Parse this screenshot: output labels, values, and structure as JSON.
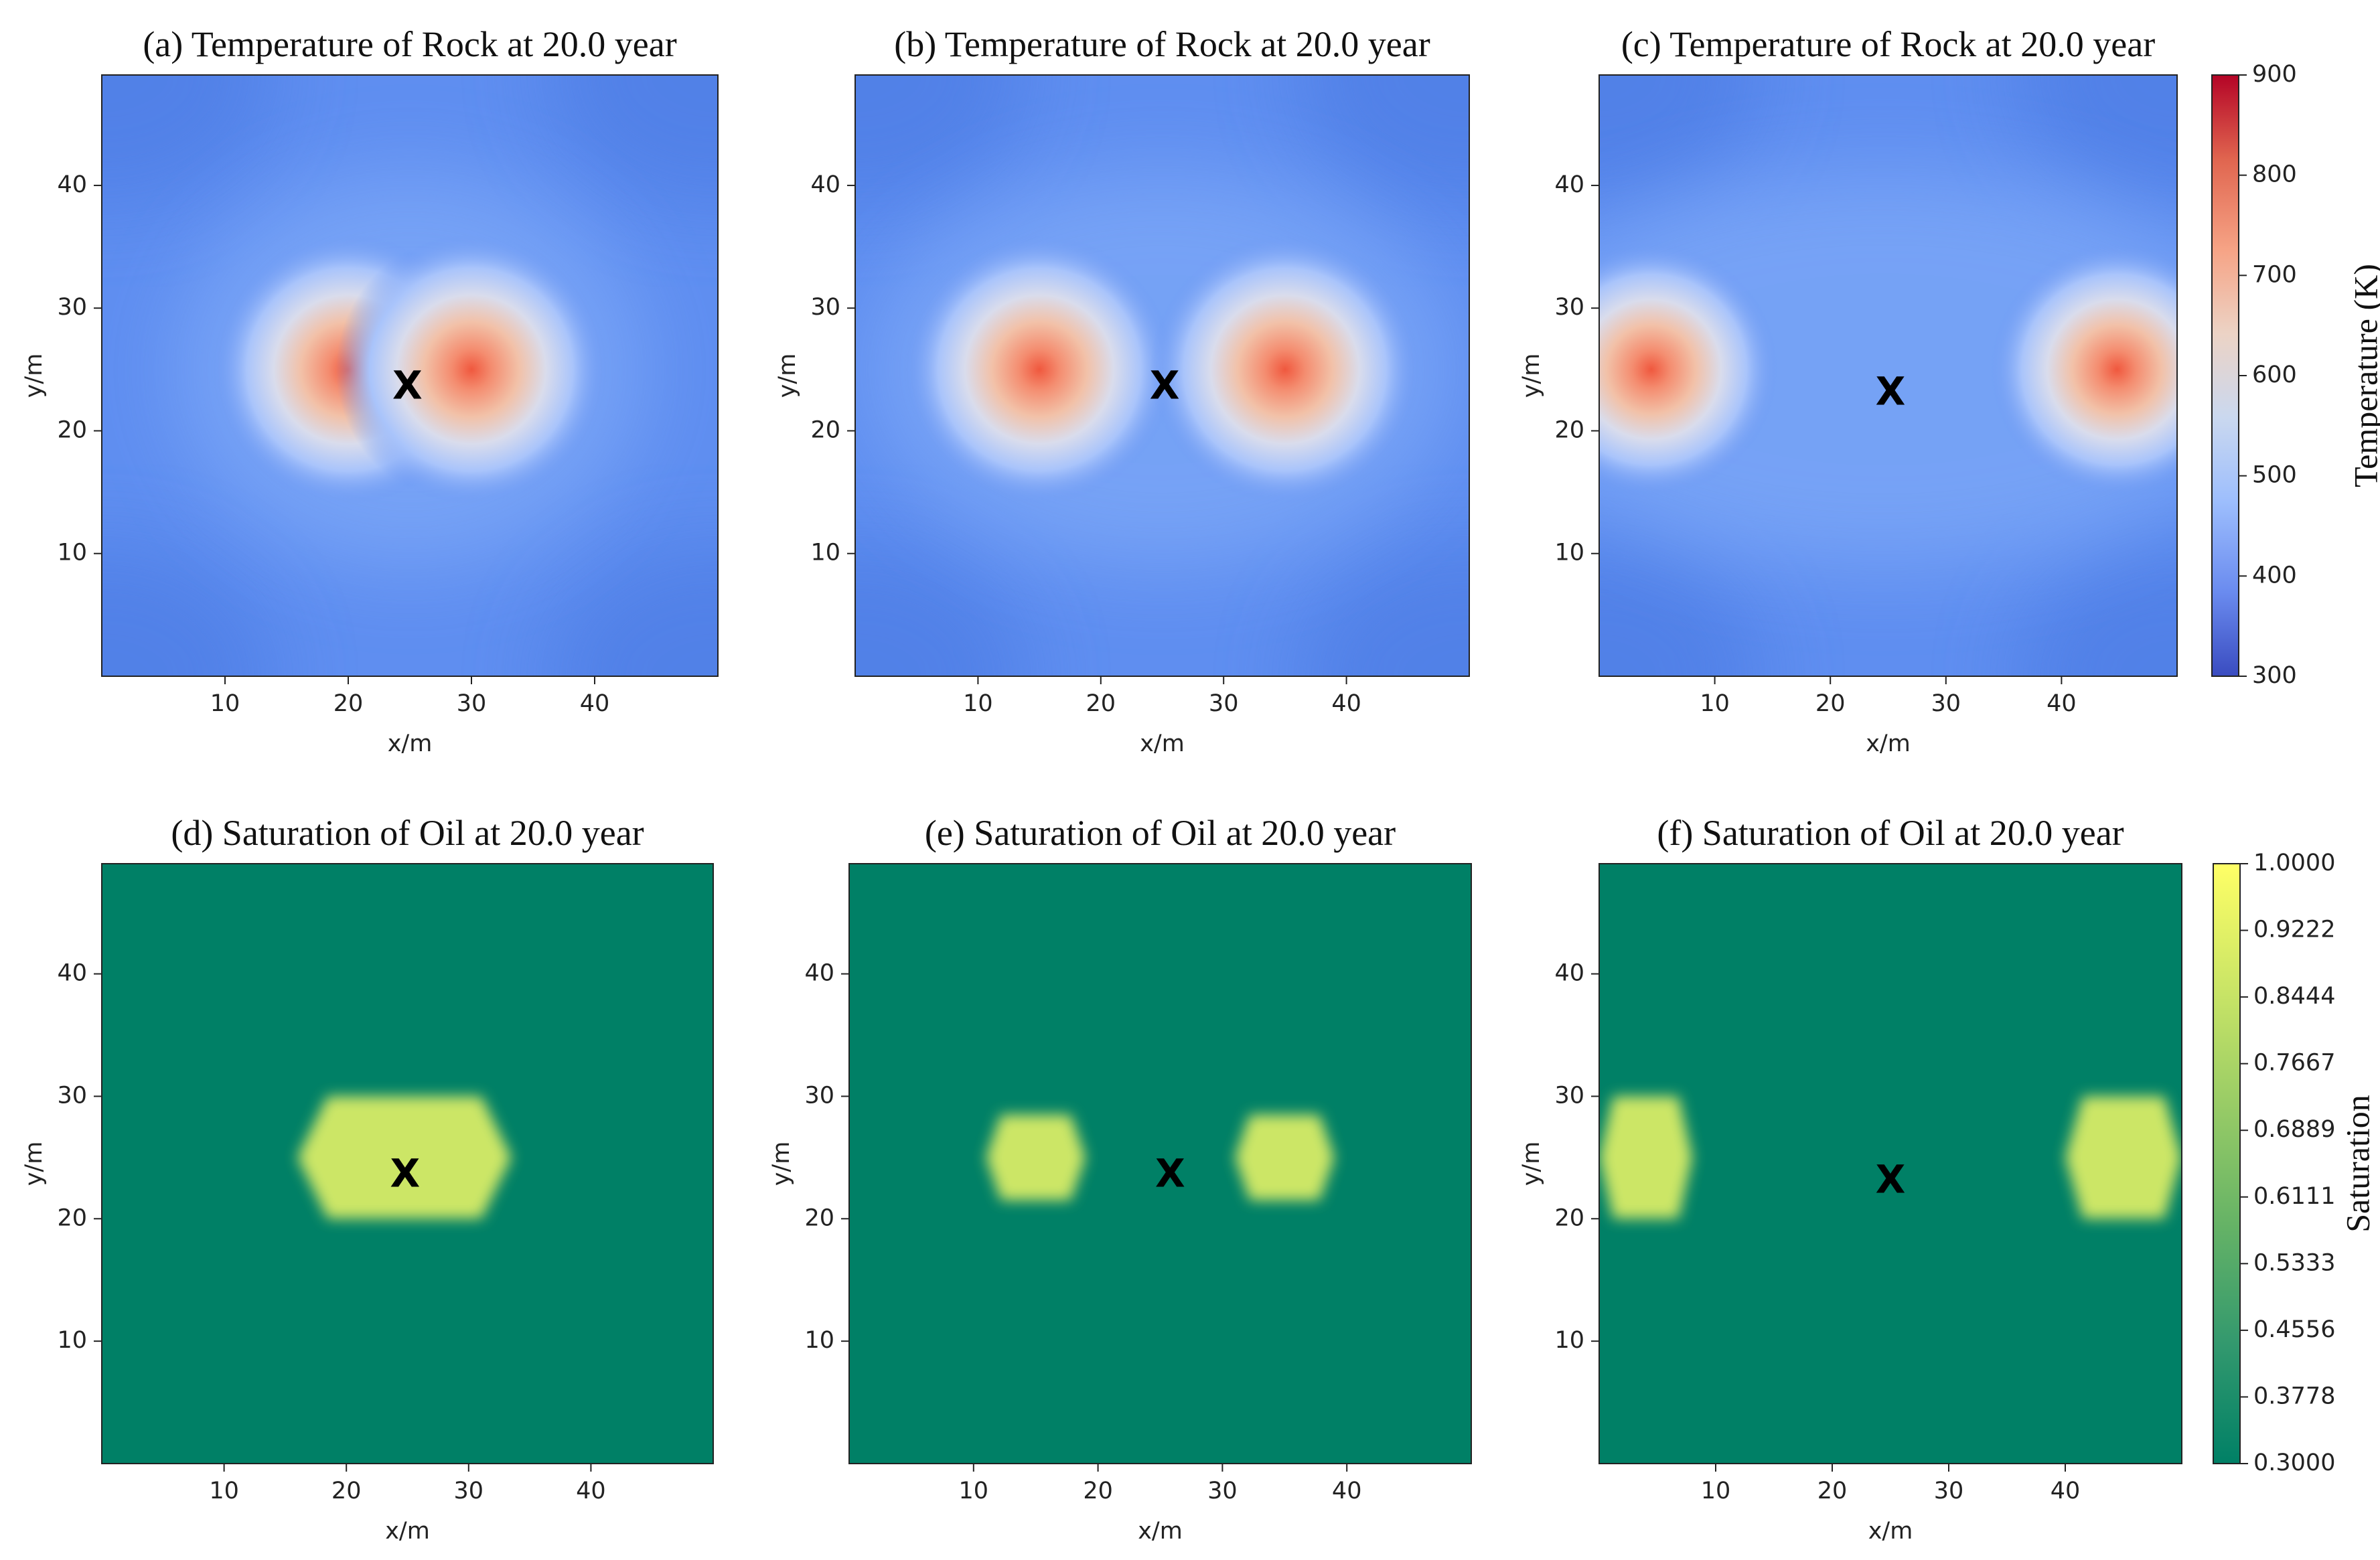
{
  "chart_data": [
    {
      "id": "a",
      "type": "heatmap",
      "field": "temperature",
      "title": "(a) Temperature of Rock at 20.0 year",
      "xlabel": "x/m",
      "ylabel": "y/m",
      "xlim": [
        0,
        50
      ],
      "ylim": [
        0,
        49
      ],
      "xticks": [
        "10",
        "20",
        "30",
        "40"
      ],
      "yticks": [
        "10",
        "20",
        "30",
        "40"
      ],
      "sources": [
        {
          "x": 20,
          "y": 25
        },
        {
          "x": 30,
          "y": 25
        }
      ],
      "marker": {
        "label": "X",
        "x": 24.8,
        "y": 23.5
      }
    },
    {
      "id": "b",
      "type": "heatmap",
      "field": "temperature",
      "title": "(b) Temperature of Rock at 20.0 year",
      "xlabel": "x/m",
      "ylabel": "y/m",
      "xlim": [
        0,
        50
      ],
      "ylim": [
        0,
        49
      ],
      "xticks": [
        "10",
        "20",
        "30",
        "40"
      ],
      "yticks": [
        "10",
        "20",
        "30",
        "40"
      ],
      "sources": [
        {
          "x": 15,
          "y": 25
        },
        {
          "x": 35,
          "y": 25
        }
      ],
      "marker": {
        "label": "X",
        "x": 25.2,
        "y": 23.5
      }
    },
    {
      "id": "c",
      "type": "heatmap",
      "field": "temperature",
      "title": "(c) Temperature of Rock at 20.0 year",
      "xlabel": "x/m",
      "ylabel": "y/m",
      "xlim": [
        0,
        50
      ],
      "ylim": [
        0,
        49
      ],
      "xticks": [
        "10",
        "20",
        "30",
        "40"
      ],
      "yticks": [
        "10",
        "20",
        "30",
        "40"
      ],
      "sources": [
        {
          "x": 4.5,
          "y": 25
        },
        {
          "x": 44.8,
          "y": 25
        }
      ],
      "marker": {
        "label": "X",
        "x": 25.2,
        "y": 23.0
      }
    },
    {
      "id": "d",
      "type": "heatmap",
      "field": "saturation",
      "title": "(d) Saturation of Oil at 20.0 year",
      "xlabel": "x/m",
      "ylabel": "y/m",
      "xlim": [
        0,
        50
      ],
      "ylim": [
        0,
        49
      ],
      "xticks": [
        "10",
        "20",
        "30",
        "40"
      ],
      "yticks": [
        "10",
        "20",
        "30",
        "40"
      ],
      "background_value": 0.3,
      "zones": [
        {
          "x1": 16,
          "x2": 33.5,
          "y1": 20,
          "y2": 30,
          "value": 0.92
        }
      ],
      "marker": {
        "label": "X",
        "x": 24.8,
        "y": 23.5
      }
    },
    {
      "id": "e",
      "type": "heatmap",
      "field": "saturation",
      "title": "(e) Saturation of Oil at 20.0 year",
      "xlabel": "x/m",
      "ylabel": "y/m",
      "xlim": [
        0,
        50
      ],
      "ylim": [
        0,
        49
      ],
      "xticks": [
        "10",
        "20",
        "30",
        "40"
      ],
      "yticks": [
        "10",
        "20",
        "30",
        "40"
      ],
      "background_value": 0.3,
      "zones": [
        {
          "x1": 11,
          "x2": 19,
          "y1": 21.5,
          "y2": 28.5,
          "value": 0.9
        },
        {
          "x1": 31,
          "x2": 39,
          "y1": 21.5,
          "y2": 28.5,
          "value": 0.9
        }
      ],
      "marker": {
        "label": "X",
        "x": 25.8,
        "y": 23.5
      }
    },
    {
      "id": "f",
      "type": "heatmap",
      "field": "saturation",
      "title": "(f) Saturation of Oil at 20.0 year",
      "xlabel": "x/m",
      "ylabel": "y/m",
      "xlim": [
        0,
        50
      ],
      "ylim": [
        0,
        49
      ],
      "xticks": [
        "10",
        "20",
        "30",
        "40"
      ],
      "yticks": [
        "10",
        "20",
        "30",
        "40"
      ],
      "background_value": 0.3,
      "zones": [
        {
          "x1": 0,
          "x2": 8,
          "y1": 20,
          "y2": 30,
          "value": 0.9
        },
        {
          "x1": 40,
          "x2": 50,
          "y1": 20,
          "y2": 30,
          "value": 0.9
        }
      ],
      "marker": {
        "label": "X",
        "x": 25.0,
        "y": 23.0
      }
    }
  ],
  "colorbars": {
    "temperature": {
      "label": "Temperature (K)",
      "min": 300,
      "max": 900,
      "ticks": [
        "900",
        "800",
        "700",
        "600",
        "500",
        "400",
        "300"
      ],
      "colormap": "coolwarm",
      "stops": [
        "#3a4cc0",
        "#6a8bef",
        "#9dbefd",
        "#cad8ef",
        "#ecd3c5",
        "#f6a385",
        "#e0654f",
        "#b40426"
      ]
    },
    "saturation": {
      "label": "Saturation",
      "min": 0.3,
      "max": 1.0,
      "ticks": [
        "1.0000",
        "0.9222",
        "0.8444",
        "0.7667",
        "0.6889",
        "0.6111",
        "0.5333",
        "0.4556",
        "0.3778",
        "0.3000"
      ],
      "colormap": "summer",
      "stops": [
        "#008066",
        "#33996e",
        "#66b366",
        "#99cc66",
        "#cce666",
        "#ffff66"
      ]
    }
  }
}
